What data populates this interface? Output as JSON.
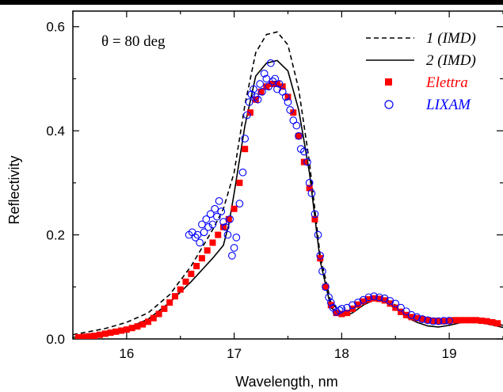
{
  "chart_data": {
    "type": "scatter",
    "xlabel": "Wavelength, nm",
    "ylabel": "Reflectivity",
    "xlim": [
      15.5,
      19.5
    ],
    "ylim": [
      0.0,
      0.63
    ],
    "x_ticks": [
      16,
      17,
      18,
      19
    ],
    "x_tick_labels": [
      "16",
      "17",
      "18",
      "19"
    ],
    "y_ticks": [
      0.0,
      0.2,
      0.4,
      0.6
    ],
    "y_tick_labels": [
      "0.0",
      "0.2",
      "0.4",
      "0.6"
    ],
    "annotation": "θ = 80 deg",
    "legend_position": "top-right",
    "grid": false,
    "series": [
      {
        "name": "1 (IMD)",
        "style": "dashed-line",
        "color": "#000000",
        "x": [
          15.5,
          15.8,
          16.0,
          16.2,
          16.4,
          16.6,
          16.8,
          16.9,
          17.0,
          17.1,
          17.2,
          17.3,
          17.4,
          17.5,
          17.6,
          17.7,
          17.8,
          17.9,
          18.0,
          18.05,
          18.1,
          18.2,
          18.3,
          18.4,
          18.5,
          18.6,
          18.7,
          18.8,
          18.9,
          19.0,
          19.1,
          19.2,
          19.3,
          19.4,
          19.5
        ],
        "y": [
          0.008,
          0.02,
          0.032,
          0.05,
          0.085,
          0.14,
          0.21,
          0.25,
          0.32,
          0.45,
          0.55,
          0.585,
          0.59,
          0.565,
          0.48,
          0.34,
          0.16,
          0.07,
          0.05,
          0.052,
          0.06,
          0.075,
          0.082,
          0.078,
          0.065,
          0.05,
          0.04,
          0.033,
          0.03,
          0.032,
          0.036,
          0.038,
          0.036,
          0.032,
          0.026
        ]
      },
      {
        "name": "2 (IMD)",
        "style": "solid-line",
        "color": "#000000",
        "x": [
          15.5,
          15.8,
          16.0,
          16.2,
          16.4,
          16.6,
          16.8,
          16.9,
          16.95,
          17.0,
          17.1,
          17.2,
          17.3,
          17.4,
          17.5,
          17.6,
          17.7,
          17.8,
          17.9,
          18.0,
          18.05,
          18.1,
          18.2,
          18.3,
          18.4,
          18.5,
          18.6,
          18.7,
          18.8,
          18.9,
          19.0,
          19.1,
          19.2,
          19.3,
          19.4,
          19.5
        ],
        "y": [
          0.003,
          0.01,
          0.02,
          0.038,
          0.07,
          0.11,
          0.155,
          0.18,
          0.22,
          0.28,
          0.41,
          0.505,
          0.53,
          0.535,
          0.515,
          0.44,
          0.32,
          0.15,
          0.06,
          0.045,
          0.046,
          0.05,
          0.065,
          0.075,
          0.072,
          0.058,
          0.042,
          0.032,
          0.025,
          0.023,
          0.026,
          0.031,
          0.033,
          0.031,
          0.027,
          0.022
        ]
      },
      {
        "name": "Elettra",
        "style": "filled-square",
        "color": "#ff0000",
        "x": [
          15.55,
          15.6,
          15.65,
          15.7,
          15.75,
          15.8,
          15.85,
          15.9,
          15.95,
          16.0,
          16.05,
          16.1,
          16.15,
          16.2,
          16.25,
          16.3,
          16.35,
          16.4,
          16.45,
          16.5,
          16.55,
          16.6,
          16.65,
          16.7,
          16.75,
          16.8,
          16.85,
          16.9,
          16.95,
          17.0,
          17.05,
          17.1,
          17.15,
          17.2,
          17.25,
          17.3,
          17.35,
          17.4,
          17.45,
          17.5,
          17.55,
          17.6,
          17.65,
          17.7,
          17.75,
          17.8,
          17.85,
          17.9,
          17.95,
          18.0,
          18.05,
          18.1,
          18.15,
          18.2,
          18.25,
          18.3,
          18.35,
          18.4,
          18.45,
          18.5,
          18.55,
          18.6,
          18.65,
          18.7,
          18.75,
          18.8,
          18.85,
          18.9,
          18.95,
          19.0,
          19.05,
          19.1,
          19.15,
          19.2,
          19.25,
          19.3,
          19.35,
          19.4,
          19.45
        ],
        "y": [
          0.003,
          0.004,
          0.005,
          0.006,
          0.008,
          0.01,
          0.012,
          0.014,
          0.016,
          0.018,
          0.021,
          0.024,
          0.028,
          0.033,
          0.04,
          0.048,
          0.058,
          0.07,
          0.082,
          0.095,
          0.11,
          0.125,
          0.14,
          0.155,
          0.17,
          0.185,
          0.2,
          0.215,
          0.23,
          0.25,
          0.3,
          0.365,
          0.435,
          0.46,
          0.475,
          0.485,
          0.49,
          0.49,
          0.485,
          0.465,
          0.435,
          0.39,
          0.34,
          0.29,
          0.23,
          0.155,
          0.1,
          0.065,
          0.05,
          0.048,
          0.05,
          0.058,
          0.066,
          0.072,
          0.076,
          0.078,
          0.077,
          0.074,
          0.068,
          0.06,
          0.052,
          0.046,
          0.042,
          0.04,
          0.038,
          0.036,
          0.035,
          0.034,
          0.034,
          0.035,
          0.036,
          0.036,
          0.036,
          0.036,
          0.036,
          0.035,
          0.034,
          0.032,
          0.03
        ]
      },
      {
        "name": "LIXAM",
        "style": "open-circle",
        "color": "#0000ff",
        "x": [
          16.58,
          16.61,
          16.64,
          16.66,
          16.68,
          16.7,
          16.72,
          16.74,
          16.76,
          16.78,
          16.8,
          16.82,
          16.84,
          16.86,
          16.88,
          16.9,
          16.92,
          16.94,
          16.96,
          16.98,
          17.0,
          17.02,
          17.05,
          17.08,
          17.1,
          17.12,
          17.14,
          17.16,
          17.18,
          17.2,
          17.22,
          17.24,
          17.26,
          17.28,
          17.3,
          17.32,
          17.34,
          17.36,
          17.38,
          17.4,
          17.42,
          17.45,
          17.48,
          17.5,
          17.52,
          17.55,
          17.58,
          17.6,
          17.62,
          17.65,
          17.68,
          17.7,
          17.72,
          17.75,
          17.78,
          17.8,
          17.82,
          17.85,
          17.88,
          17.9,
          17.92,
          17.95,
          17.98,
          18.0,
          18.05,
          18.1,
          18.15,
          18.2,
          18.25,
          18.3,
          18.35,
          18.4,
          18.45,
          18.5,
          18.55,
          18.6,
          18.65,
          18.7,
          18.75,
          18.8,
          18.85,
          18.9,
          18.95,
          19.0
        ],
        "y": [
          0.2,
          0.205,
          0.195,
          0.2,
          0.185,
          0.22,
          0.205,
          0.23,
          0.215,
          0.24,
          0.22,
          0.25,
          0.235,
          0.265,
          0.245,
          0.225,
          0.215,
          0.2,
          0.23,
          0.16,
          0.175,
          0.195,
          0.26,
          0.32,
          0.385,
          0.43,
          0.455,
          0.47,
          0.48,
          0.465,
          0.46,
          0.49,
          0.475,
          0.51,
          0.5,
          0.485,
          0.53,
          0.495,
          0.5,
          0.48,
          0.49,
          0.475,
          0.465,
          0.455,
          0.44,
          0.42,
          0.41,
          0.39,
          0.365,
          0.36,
          0.34,
          0.3,
          0.28,
          0.24,
          0.2,
          0.16,
          0.13,
          0.1,
          0.08,
          0.07,
          0.06,
          0.052,
          0.055,
          0.058,
          0.06,
          0.065,
          0.07,
          0.075,
          0.08,
          0.082,
          0.08,
          0.078,
          0.073,
          0.068,
          0.06,
          0.053,
          0.046,
          0.042,
          0.038,
          0.036,
          0.034,
          0.034,
          0.035,
          0.035
        ]
      }
    ]
  }
}
